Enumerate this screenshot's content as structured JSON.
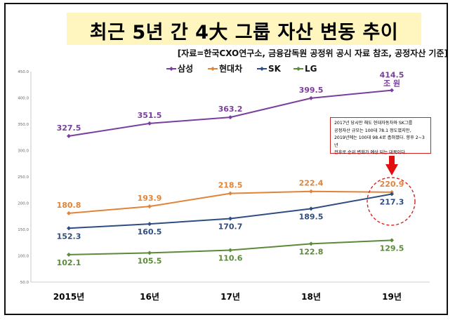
{
  "title": "최근 5년 간 4大 그룹 자산 변동 추이",
  "subtitle": "[자료=한국CXO연구소, 금융감독원 공정위 공시 자료 참조, 공정자산 기준]",
  "note": {
    "lines": [
      "2017년 당시만 해도 현대자동차와 SK그룹",
      "공정자산 규모는 100대 78.1 정도였지만,",
      "2019년에는 100대 98.4로 좁혀졌다. 향후 2~3년",
      "전후로 순위 변화가 예상 되는 대목이다."
    ]
  },
  "chart_data": {
    "type": "line",
    "categories": [
      "2015년",
      "16년",
      "17년",
      "18년",
      "19년"
    ],
    "ylim": [
      50,
      450
    ],
    "yticks": [
      "50.0",
      "100.0",
      "150.0",
      "200.0",
      "250.0",
      "300.0",
      "350.0",
      "400.0",
      "450.0"
    ],
    "grid": false,
    "legend": "top",
    "unit_label": "조 원",
    "series": [
      {
        "name": "삼성",
        "color": "#7a3f9d",
        "values": [
          327.5,
          351.5,
          363.2,
          399.5,
          414.5
        ],
        "labels": [
          "327.5",
          "351.5",
          "363.2",
          "399.5",
          "414.5"
        ]
      },
      {
        "name": "현대차",
        "color": "#e0843a",
        "values": [
          180.8,
          193.9,
          218.5,
          222.4,
          220.9
        ],
        "labels": [
          "180.8",
          "193.9",
          "218.5",
          "222.4",
          "220.9"
        ]
      },
      {
        "name": "SK",
        "color": "#2e4e82",
        "values": [
          152.3,
          160.5,
          170.7,
          189.5,
          217.3
        ],
        "labels": [
          "152.3",
          "160.5",
          "170.7",
          "189.5",
          "217.3"
        ]
      },
      {
        "name": "LG",
        "color": "#5a8a3a",
        "values": [
          102.1,
          105.5,
          110.6,
          122.8,
          129.5
        ],
        "labels": [
          "102.1",
          "105.5",
          "110.6",
          "122.8",
          "129.5"
        ]
      }
    ]
  }
}
